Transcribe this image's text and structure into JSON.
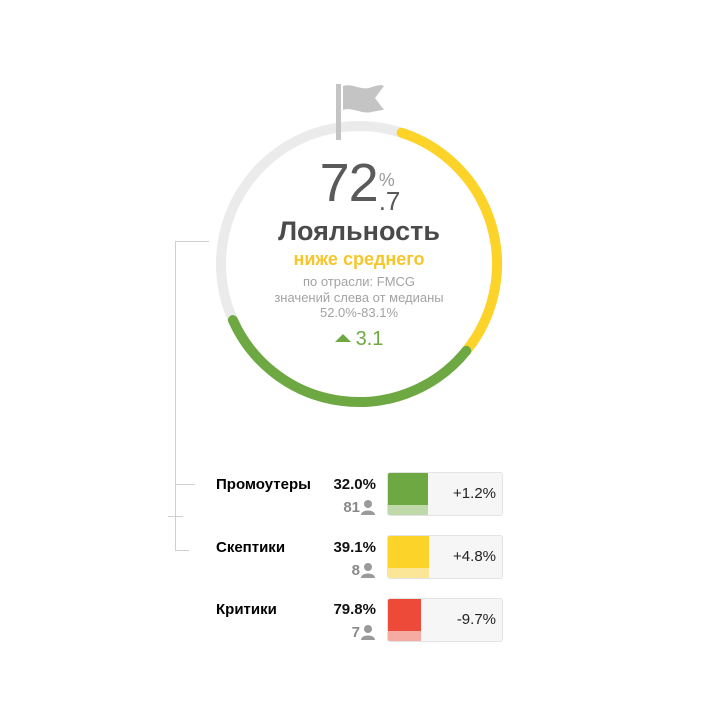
{
  "score": {
    "integer": "72",
    "decimal": ".7",
    "unit": "%"
  },
  "title": "Лояльность",
  "status": "ниже среднего",
  "industry_line": "по отрасли: FMCG",
  "median_line": "значений слева от медианы",
  "range_line": "52.0%-83.1%",
  "delta": "3.1",
  "gauge": {
    "value_pct": 72.7,
    "color_green": "#6ea843",
    "color_yellow": "#fcd328",
    "color_track": "#ebebeb",
    "flag_icon": "flag-icon"
  },
  "segments": [
    {
      "name": "Промоутеры",
      "percent": "32.0%",
      "count": "81",
      "change": "+1.2%",
      "color": "#6ea843",
      "color_light": "#bfd9a8",
      "fill_pct": 35
    },
    {
      "name": "Скептики",
      "percent": "39.1%",
      "count": "8",
      "change": "+4.8%",
      "color": "#fcd328",
      "color_light": "#fbe697",
      "fill_pct": 36
    },
    {
      "name": "Критики",
      "percent": "79.8%",
      "count": "7",
      "change": "-9.7%",
      "color": "#ee4a3a",
      "color_light": "#f5aaa2",
      "fill_pct": 29
    }
  ]
}
